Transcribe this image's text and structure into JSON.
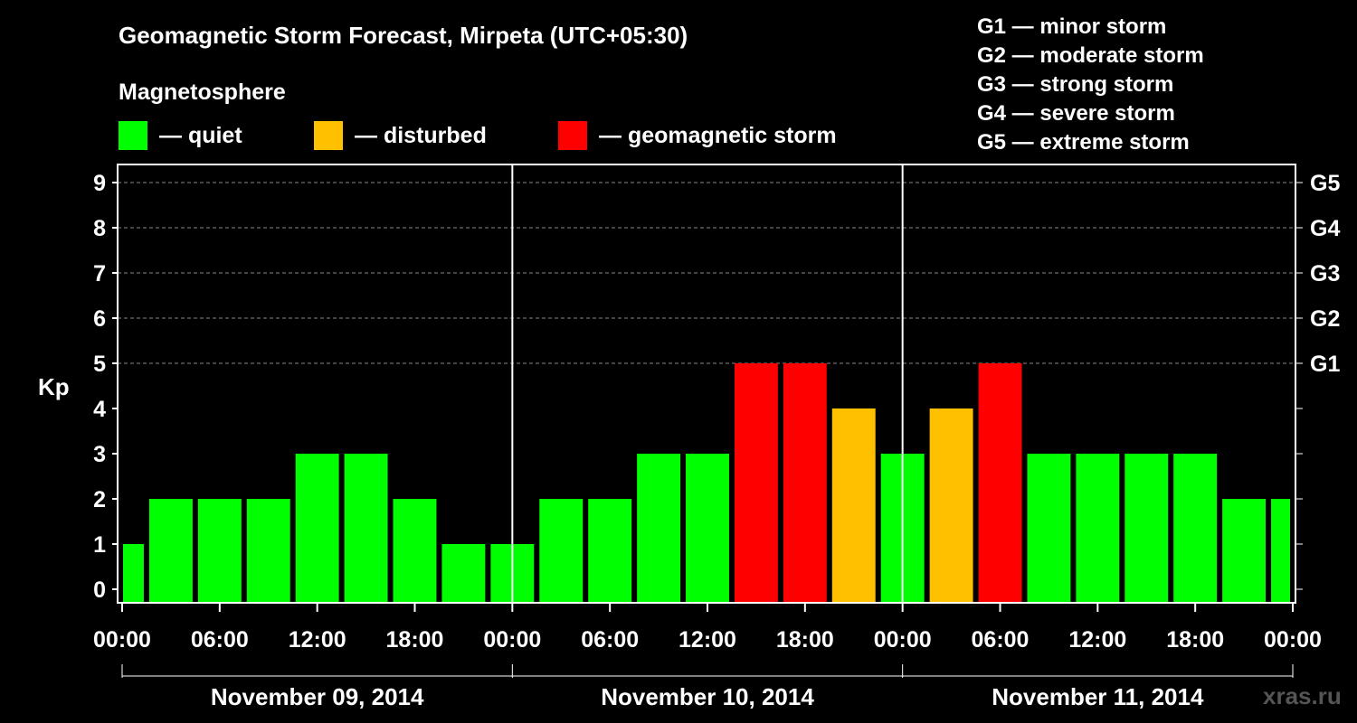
{
  "header": {
    "title": "Geomagnetic Storm Forecast, Mirpeta (UTC+05:30)",
    "legend_heading": "Magnetosphere",
    "watermark": "xras.ru"
  },
  "legend": [
    {
      "label": "— quiet",
      "color": "#00ff00"
    },
    {
      "label": "— disturbed",
      "color": "#ffc000"
    },
    {
      "label": "— geomagnetic storm",
      "color": "#ff0000"
    }
  ],
  "storm_scale": [
    "G1 — minor storm",
    "G2 — moderate storm",
    "G3 — strong storm",
    "G4 — severe storm",
    "G5 — extreme storm"
  ],
  "colors": {
    "background": "#000000",
    "axis": "#ffffff",
    "grid": "#888888"
  },
  "chart_data": {
    "type": "bar",
    "ylabel": "Kp",
    "ylim": [
      0,
      9
    ],
    "y_ticks": [
      "0",
      "1",
      "2",
      "3",
      "4",
      "5",
      "6",
      "7",
      "8",
      "9"
    ],
    "right_ticks": [
      {
        "kp": 5,
        "label": "G1"
      },
      {
        "kp": 6,
        "label": "G2"
      },
      {
        "kp": 7,
        "label": "G3"
      },
      {
        "kp": 8,
        "label": "G4"
      },
      {
        "kp": 9,
        "label": "G5"
      }
    ],
    "grid": "dashed horizontal at Kp 5-9",
    "x_range_hours": [
      0,
      72
    ],
    "x_ticks": [
      {
        "hour": 0,
        "label": "00:00"
      },
      {
        "hour": 6,
        "label": "06:00"
      },
      {
        "hour": 12,
        "label": "12:00"
      },
      {
        "hour": 18,
        "label": "18:00"
      },
      {
        "hour": 24,
        "label": "00:00"
      },
      {
        "hour": 30,
        "label": "06:00"
      },
      {
        "hour": 36,
        "label": "12:00"
      },
      {
        "hour": 42,
        "label": "18:00"
      },
      {
        "hour": 48,
        "label": "00:00"
      },
      {
        "hour": 54,
        "label": "06:00"
      },
      {
        "hour": 60,
        "label": "12:00"
      },
      {
        "hour": 66,
        "label": "18:00"
      },
      {
        "hour": 72,
        "label": "00:00"
      }
    ],
    "days": [
      {
        "label": "November 09, 2014",
        "start_hour": 0,
        "end_hour": 24
      },
      {
        "label": "November 10, 2014",
        "start_hour": 24,
        "end_hour": 48
      },
      {
        "label": "November 11, 2014",
        "start_hour": 48,
        "end_hour": 72
      }
    ],
    "bars": [
      {
        "start_hour": 0,
        "end_hour": 1.5,
        "kp": 1
      },
      {
        "start_hour": 1.5,
        "end_hour": 4.5,
        "kp": 2
      },
      {
        "start_hour": 4.5,
        "end_hour": 7.5,
        "kp": 2
      },
      {
        "start_hour": 7.5,
        "end_hour": 10.5,
        "kp": 2
      },
      {
        "start_hour": 10.5,
        "end_hour": 13.5,
        "kp": 3
      },
      {
        "start_hour": 13.5,
        "end_hour": 16.5,
        "kp": 3
      },
      {
        "start_hour": 16.5,
        "end_hour": 19.5,
        "kp": 2
      },
      {
        "start_hour": 19.5,
        "end_hour": 22.5,
        "kp": 1
      },
      {
        "start_hour": 22.5,
        "end_hour": 25.5,
        "kp": 1
      },
      {
        "start_hour": 25.5,
        "end_hour": 28.5,
        "kp": 2
      },
      {
        "start_hour": 28.5,
        "end_hour": 31.5,
        "kp": 2
      },
      {
        "start_hour": 31.5,
        "end_hour": 34.5,
        "kp": 3
      },
      {
        "start_hour": 34.5,
        "end_hour": 37.5,
        "kp": 3
      },
      {
        "start_hour": 37.5,
        "end_hour": 40.5,
        "kp": 5
      },
      {
        "start_hour": 40.5,
        "end_hour": 43.5,
        "kp": 5
      },
      {
        "start_hour": 43.5,
        "end_hour": 46.5,
        "kp": 4
      },
      {
        "start_hour": 46.5,
        "end_hour": 49.5,
        "kp": 3
      },
      {
        "start_hour": 49.5,
        "end_hour": 52.5,
        "kp": 4
      },
      {
        "start_hour": 52.5,
        "end_hour": 55.5,
        "kp": 5
      },
      {
        "start_hour": 55.5,
        "end_hour": 58.5,
        "kp": 3
      },
      {
        "start_hour": 58.5,
        "end_hour": 61.5,
        "kp": 3
      },
      {
        "start_hour": 61.5,
        "end_hour": 64.5,
        "kp": 3
      },
      {
        "start_hour": 64.5,
        "end_hour": 67.5,
        "kp": 3
      },
      {
        "start_hour": 67.5,
        "end_hour": 70.5,
        "kp": 2
      },
      {
        "start_hour": 70.5,
        "end_hour": 72,
        "kp": 2
      }
    ]
  }
}
